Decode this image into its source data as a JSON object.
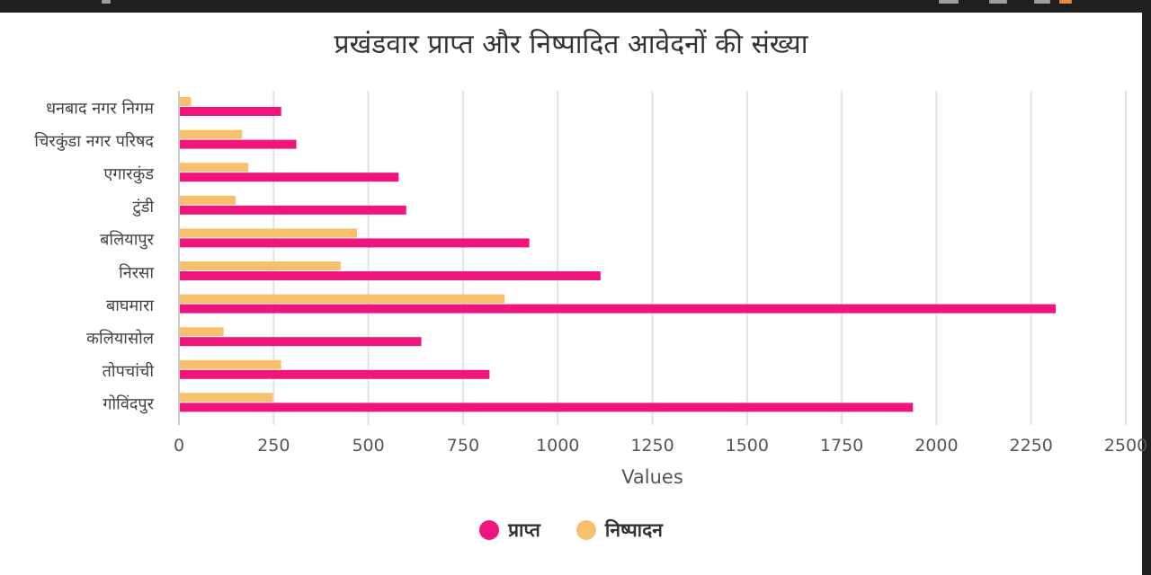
{
  "chart_data": {
    "type": "bar",
    "orientation": "horizontal",
    "title": "प्रखंडवार प्राप्त और निष्पादित आवेदनों की संख्या",
    "xlabel": "Values",
    "ylabel": "",
    "xlim": [
      0,
      2500
    ],
    "xticks": [
      "0",
      "250",
      "500",
      "750",
      "1000",
      "1250",
      "1500",
      "1750",
      "2000",
      "2250",
      "2500"
    ],
    "grid": true,
    "legend_position": "bottom",
    "categories": [
      "धनबाद नगर निगम",
      "चिरकुंडा नगर परिषद",
      "एगारकुंड",
      "टुंडी",
      "बलियापुर",
      "निरसा",
      "बाघमारा",
      "कलियासोल",
      "तोपचांची",
      "गोविंदपुर"
    ],
    "series": [
      {
        "name": "प्राप्त",
        "color": "#f0147d",
        "values": [
          270,
          310,
          580,
          600,
          925,
          1113,
          2315,
          640,
          820,
          1938
        ]
      },
      {
        "name": "निष्पादन",
        "color": "#f8c06c",
        "values": [
          32,
          167,
          183,
          150,
          470,
          427,
          860,
          118,
          270,
          248
        ]
      }
    ]
  }
}
